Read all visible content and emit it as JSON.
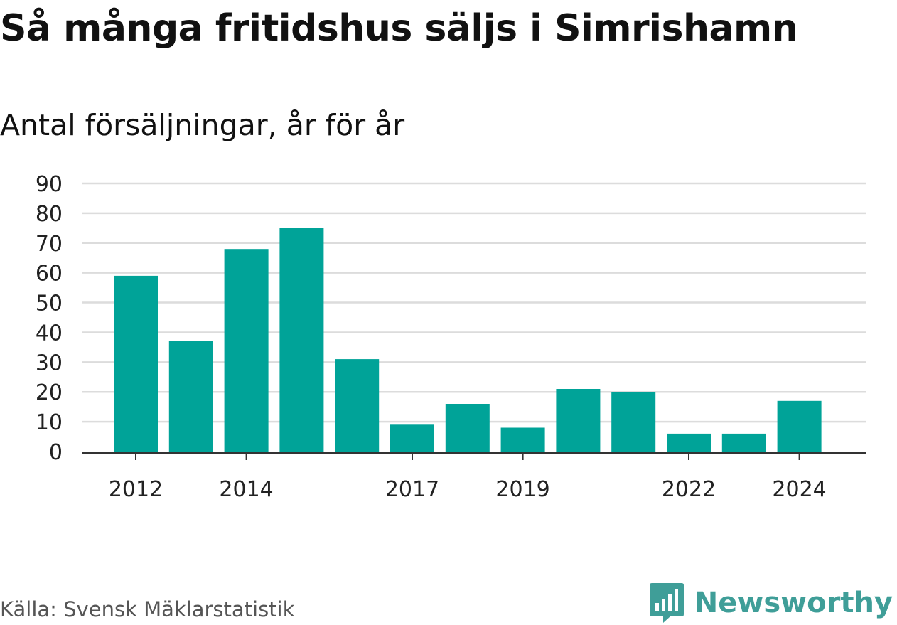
{
  "title": "Så många fritidshus säljs i Simrishamn",
  "subtitle": "Antal försäljningar, år för år",
  "source": "Källa: Svensk Mäklarstatistik",
  "brand": {
    "name": "Newsworthy",
    "logo_icon": "newsworthy-bar-chart-bubble-icon",
    "color": "#3f9e98"
  },
  "chart_data": {
    "type": "bar",
    "categories": [
      "2012",
      "2013",
      "2014",
      "2015",
      "2016",
      "2017",
      "2018",
      "2019",
      "2020",
      "2021",
      "2022",
      "2023",
      "2024"
    ],
    "values": [
      59,
      37,
      68,
      75,
      31,
      9,
      16,
      8,
      21,
      20,
      6,
      6,
      17
    ],
    "x_tick_labels": [
      "2012",
      "2014",
      "2017",
      "2019",
      "2022",
      "2024"
    ],
    "y_ticks": [
      0,
      10,
      20,
      30,
      40,
      50,
      60,
      70,
      80,
      90
    ],
    "ylim": [
      0,
      90
    ],
    "grid": true,
    "bar_color": "#00a398",
    "xlabel": "",
    "ylabel": ""
  }
}
